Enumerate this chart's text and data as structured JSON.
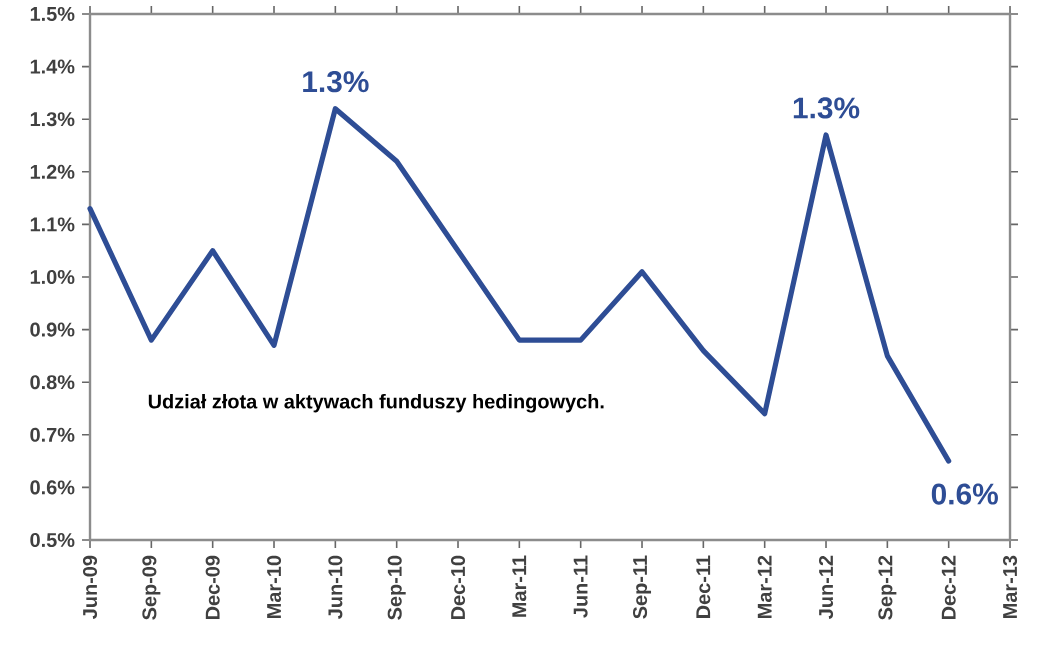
{
  "chart_data": {
    "type": "line",
    "categories": [
      "Jun-09",
      "Sep-09",
      "Dec-09",
      "Mar-10",
      "Jun-10",
      "Sep-10",
      "Dec-10",
      "Mar-11",
      "Jun-11",
      "Sep-11",
      "Dec-11",
      "Mar-12",
      "Jun-12",
      "Sep-12",
      "Dec-12",
      "Mar-13"
    ],
    "series": [
      {
        "color": "#2e4d95",
        "values": [
          1.13,
          0.88,
          1.05,
          0.87,
          1.32,
          1.22,
          1.05,
          0.88,
          0.88,
          1.01,
          0.86,
          0.74,
          1.27,
          0.85,
          0.65,
          null
        ],
        "value_labels": [
          null,
          null,
          null,
          null,
          "1.3%",
          null,
          null,
          null,
          null,
          null,
          null,
          null,
          "1.3%",
          null,
          "0.6%",
          null
        ]
      }
    ],
    "ylim": [
      0.5,
      1.5
    ],
    "yticks": [
      {
        "value": 0.5,
        "label": "0.5%"
      },
      {
        "value": 0.6,
        "label": "0.6%"
      },
      {
        "value": 0.7,
        "label": "0.7%"
      },
      {
        "value": 0.8,
        "label": "0.8%"
      },
      {
        "value": 0.9,
        "label": "0.9%"
      },
      {
        "value": 1.0,
        "label": "1.0%"
      },
      {
        "value": 1.1,
        "label": "1.1%"
      },
      {
        "value": 1.2,
        "label": "1.2%"
      },
      {
        "value": 1.3,
        "label": "1.3%"
      },
      {
        "value": 1.4,
        "label": "1.4%"
      },
      {
        "value": 1.5,
        "label": "1.5%"
      }
    ],
    "grid": false,
    "marker": "none",
    "line_style": "solid",
    "annotations": [
      "Udział złota w aktywach funduszy hedingowych."
    ]
  }
}
